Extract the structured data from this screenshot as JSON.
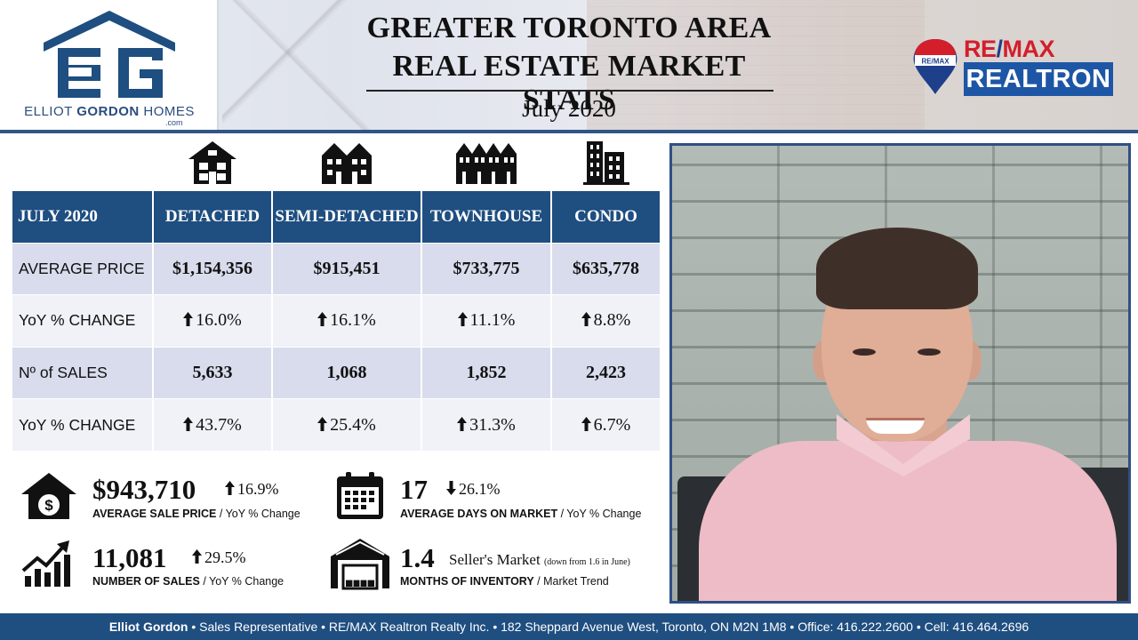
{
  "header": {
    "brand_name_light": "ELLIOT ",
    "brand_name_bold": "GORDON",
    "brand_name_tail": " HOMES",
    "brand_domain": ".com",
    "title_line1": "GREATER TORONTO AREA",
    "title_line2": "REAL ESTATE MARKET STATS",
    "subtitle": "July 2020",
    "remax_word_left": "RE",
    "remax_slash": "/",
    "remax_word_right": "MAX",
    "remax_balloon_text": "RE/MAX",
    "realtron_label": "REALTRON"
  },
  "property_icons": [
    "detached-house-icon",
    "semi-detached-icon",
    "townhouse-icon",
    "condo-icon"
  ],
  "table": {
    "columns": [
      "JULY 2020",
      "DETACHED",
      "SEMI-DETACHED",
      "TOWNHOUSE",
      "CONDO"
    ],
    "rows": [
      {
        "label": "AVERAGE PRICE",
        "values": [
          "$1,154,356",
          "$915,451",
          "$733,775",
          "$635,778"
        ]
      },
      {
        "label": "YoY % CHANGE",
        "values": [
          "16.0%",
          "16.1%",
          "11.1%",
          "8.8%"
        ],
        "direction": "up"
      },
      {
        "label": "Nº of SALES",
        "values": [
          "5,633",
          "1,068",
          "1,852",
          "2,423"
        ]
      },
      {
        "label": "YoY % CHANGE",
        "values": [
          "43.7%",
          "25.4%",
          "31.3%",
          "6.7%"
        ],
        "direction": "up"
      }
    ]
  },
  "summary": {
    "avg_price": {
      "value": "$943,710",
      "change": "16.9%",
      "direction": "up",
      "caption_bold": "AVERAGE SALE PRICE",
      "caption_rest": " / YoY % Change",
      "icon": "house-dollar-icon"
    },
    "days_on_market": {
      "value": "17",
      "change": "26.1%",
      "direction": "down",
      "caption_bold": "AVERAGE DAYS ON MARKET",
      "caption_rest": " / YoY % Change",
      "icon": "calendar-icon"
    },
    "num_sales": {
      "value": "11,081",
      "change": "29.5%",
      "direction": "up",
      "caption_bold": "NUMBER OF SALES",
      "caption_rest": " / YoY % Change",
      "icon": "rising-chart-icon"
    },
    "inventory": {
      "value": "1.4",
      "trend": "Seller's Market",
      "trend_note": "(down from 1.6 in June)",
      "caption_bold": "MONTHS OF INVENTORY",
      "caption_rest": " / Market Trend",
      "icon": "warehouse-icon"
    }
  },
  "footer": {
    "name": "Elliot Gordon",
    "details": " • Sales Representative • RE/MAX Realtron Realty Inc. • 182 Sheppard Avenue West, Toronto, ON M2N 1M8 • Office: 416.222.2600 • Cell: 416.464.2696"
  },
  "colors": {
    "navy": "#1f4e80",
    "row_shade": "#d8dcec",
    "row_plain": "#f1f2f8",
    "remax_red": "#d21f2b",
    "realtron_blue": "#1e56a6"
  }
}
